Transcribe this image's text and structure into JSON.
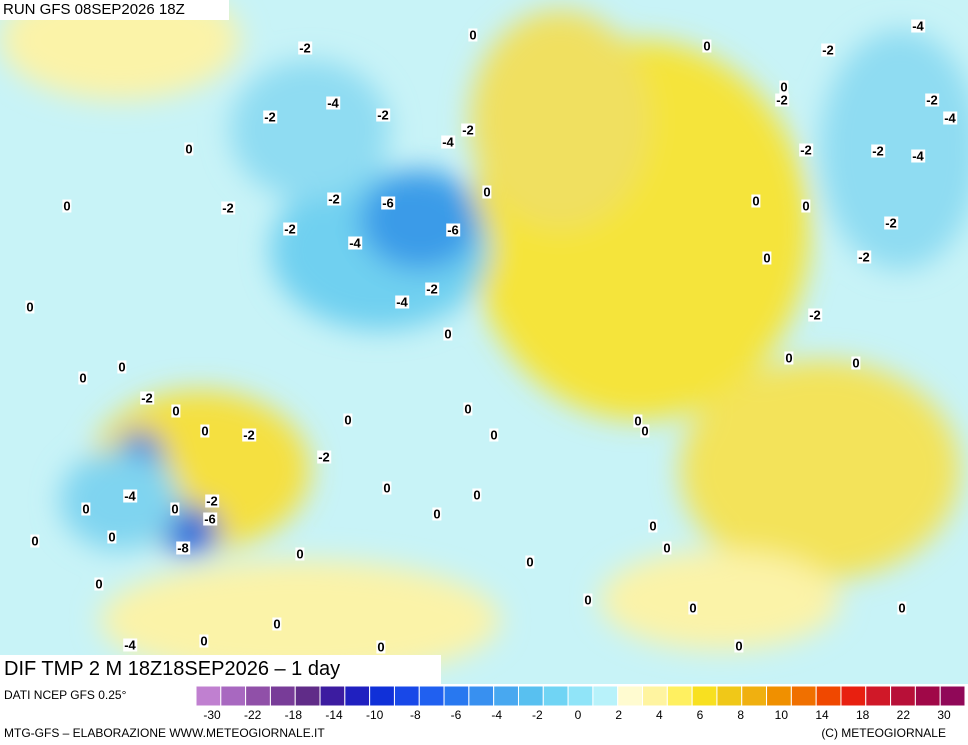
{
  "header": {
    "title": "RUN GFS 08SEP2026 18Z"
  },
  "map": {
    "caption": "DIF TMP 2 M 18Z18SEP2026 – 1 day",
    "contour_labels": [
      "-2",
      "0",
      "0",
      "-2",
      "-4",
      "-4",
      "-2",
      "-2",
      "0",
      "-2",
      "-2",
      "-4",
      "-2",
      "-4",
      "0",
      "-2",
      "-2",
      "-4",
      "0",
      "-2",
      "-6",
      "0",
      "-2",
      "0",
      "0",
      "-2",
      "-2",
      "-6",
      "-4",
      "0",
      "-2",
      "-2",
      "-4",
      "0",
      "-2",
      "0",
      "0",
      "0",
      "0",
      "0",
      "-2",
      "0",
      "0",
      "0",
      "0",
      "-2",
      "0",
      "0",
      "0",
      "-2",
      "0",
      "0",
      "-4",
      "-2",
      "0",
      "-6",
      "0",
      "0",
      "0",
      "0",
      "0",
      "-8",
      "0",
      "0",
      "0",
      "0",
      "0",
      "0",
      "0",
      "0",
      "-4",
      "0",
      "0",
      "0"
    ]
  },
  "colorbar": {
    "source": "DATI NCEP GFS 0.25°",
    "labels": [
      "-30",
      "-22",
      "-18",
      "-14",
      "-10",
      "-8",
      "-6",
      "-4",
      "-2",
      "0",
      "2",
      "4",
      "6",
      "8",
      "10",
      "14",
      "18",
      "22",
      "30"
    ]
  },
  "footer": {
    "credit": "MTG-GFS – ELABORAZIONE WWW.METEOGIORNALE.IT",
    "copyright": "(C) METEOGIORNALE"
  }
}
